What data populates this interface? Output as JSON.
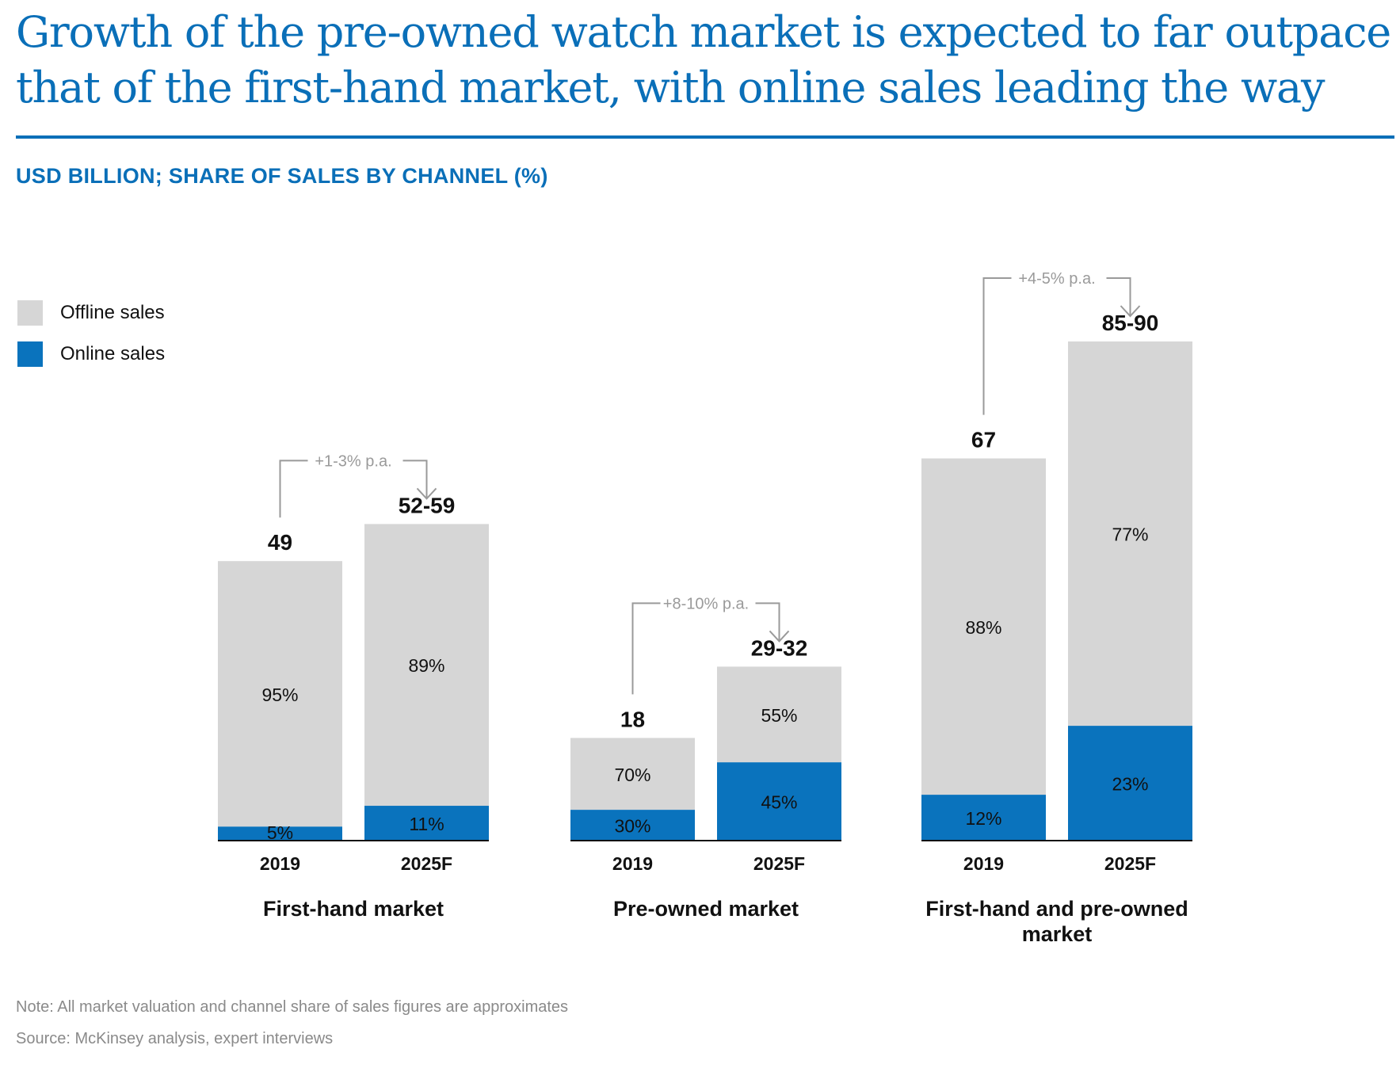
{
  "header": {
    "title_line1": "Growth of the pre-owned watch market is expected to far outpace",
    "title_line2": "that of the first-hand market, with online sales leading the way",
    "subtitle": "USD BILLION; SHARE OF SALES BY CHANNEL (%)"
  },
  "legend": {
    "offline_label": "Offline sales",
    "online_label": "Online sales"
  },
  "colors": {
    "offline": "#d6d6d6",
    "online": "#0a73bd",
    "title": "#0a6fb8",
    "annotation": "#9a9a9a"
  },
  "chart_data": {
    "type": "bar",
    "stacked": true,
    "units": "USD billion",
    "series": [
      {
        "name": "Offline sales"
      },
      {
        "name": "Online sales"
      }
    ],
    "groups": [
      {
        "name": "First-hand market",
        "growth": "+1-3% p.a.",
        "bars": [
          {
            "year": "2019",
            "total": 49,
            "total_label": "49",
            "offline_pct": 95,
            "online_pct": 5
          },
          {
            "year": "2025F",
            "total": 55.5,
            "total_label": "52-59",
            "offline_pct": 89,
            "online_pct": 11
          }
        ]
      },
      {
        "name": "Pre-owned market",
        "growth": "+8-10% p.a.",
        "bars": [
          {
            "year": "2019",
            "total": 18,
            "total_label": "18",
            "offline_pct": 70,
            "online_pct": 30
          },
          {
            "year": "2025F",
            "total": 30.5,
            "total_label": "29-32",
            "offline_pct": 55,
            "online_pct": 45
          }
        ]
      },
      {
        "name": "First-hand and pre-owned market",
        "growth": "+4-5% p.a.",
        "bars": [
          {
            "year": "2019",
            "total": 67,
            "total_label": "67",
            "offline_pct": 88,
            "online_pct": 12
          },
          {
            "year": "2025F",
            "total": 87.5,
            "total_label": "85-90",
            "offline_pct": 77,
            "online_pct": 23
          }
        ]
      }
    ]
  },
  "footer": {
    "note": "Note: All market valuation and channel share of sales figures are approximates",
    "source": "Source: McKinsey analysis, expert interviews"
  }
}
